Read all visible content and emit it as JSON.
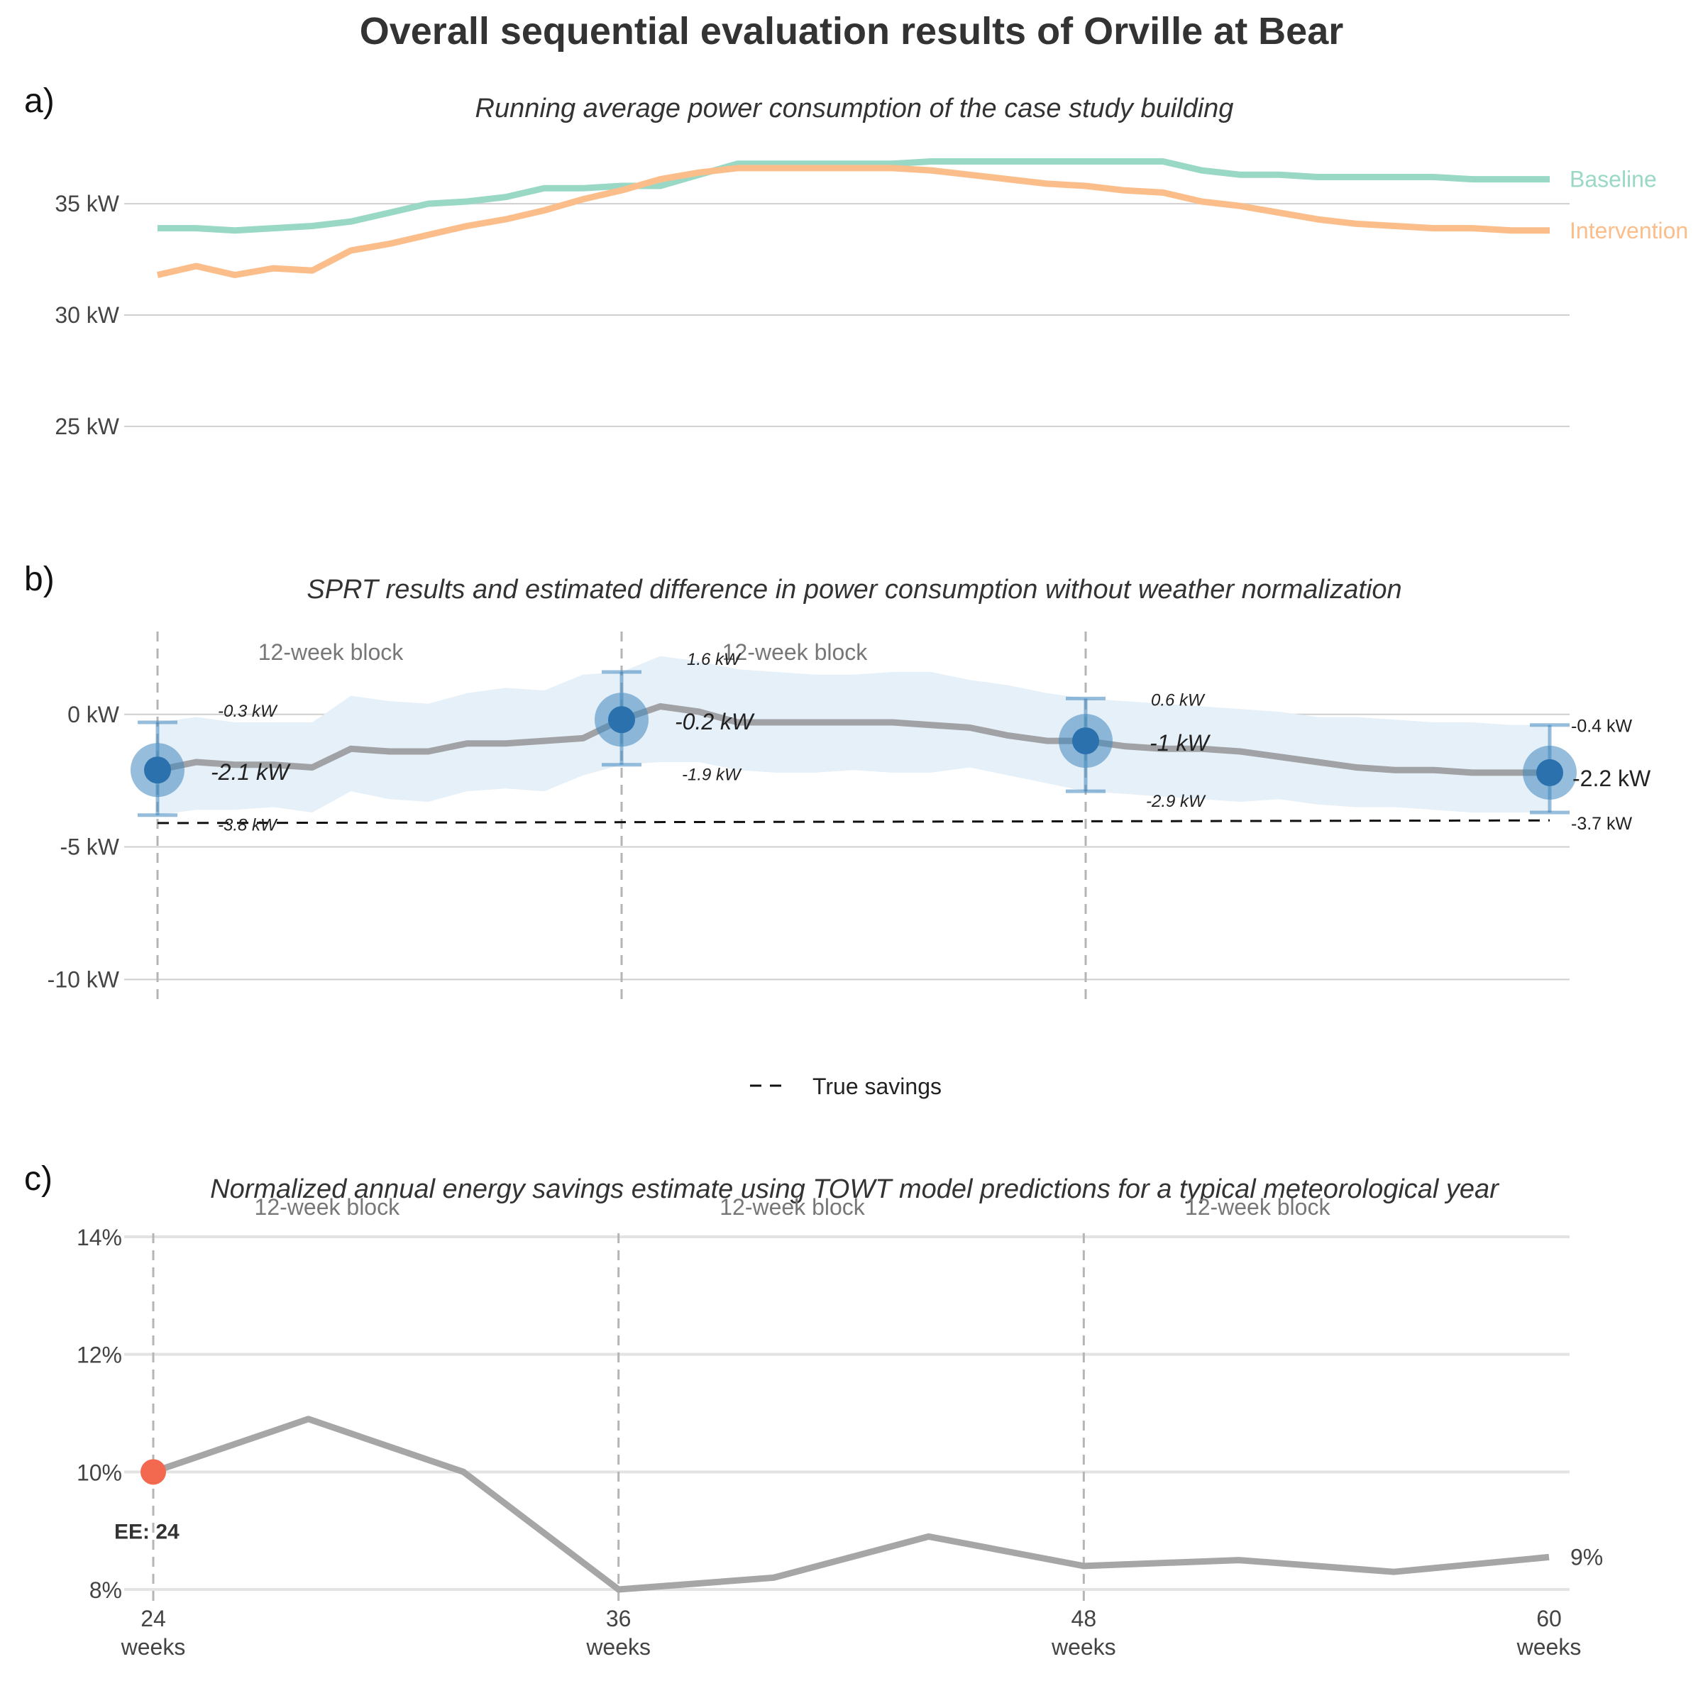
{
  "title": "Overall sequential evaluation results of Orville at Bear",
  "colors": {
    "baseline": "#9ad8c6",
    "intervention": "#fbbe8a",
    "diff": "#a0a2a5",
    "band": "#e6f0f8",
    "sprt": "#3f87bd",
    "savings": "#a6a6a6",
    "ee": "#f2694f"
  },
  "x_labels": [
    {
      "week": 24,
      "line1": "24",
      "line2": "weeks"
    },
    {
      "week": 36,
      "line1": "36",
      "line2": "weeks"
    },
    {
      "week": 48,
      "line1": "48",
      "line2": "weeks"
    },
    {
      "week": 60,
      "line1": "60",
      "line2": "weeks"
    }
  ],
  "panel_a": {
    "letter": "a)",
    "subtitle": "Running average power consumption of the case study building",
    "chart_data": {
      "type": "line",
      "x": [
        24,
        25,
        26,
        27,
        28,
        29,
        30,
        31,
        32,
        33,
        34,
        35,
        36,
        37,
        38,
        39,
        40,
        41,
        42,
        43,
        44,
        45,
        46,
        47,
        48,
        49,
        50,
        51,
        52,
        53,
        54,
        55,
        56,
        57,
        58,
        59,
        60
      ],
      "xlim": [
        24,
        60
      ],
      "ylim": [
        22,
        38
      ],
      "yticks": [
        25,
        30,
        35
      ],
      "ytick_labels": [
        "25 kW",
        "30 kW",
        "35 kW"
      ],
      "series": [
        {
          "name": "Baseline",
          "values": [
            33.9,
            33.9,
            33.8,
            33.9,
            34.0,
            34.2,
            34.6,
            35.0,
            35.1,
            35.3,
            35.7,
            35.7,
            35.8,
            35.8,
            36.3,
            36.8,
            36.8,
            36.8,
            36.8,
            36.8,
            36.9,
            36.9,
            36.9,
            36.9,
            36.9,
            36.9,
            36.9,
            36.5,
            36.3,
            36.3,
            36.2,
            36.2,
            36.2,
            36.2,
            36.1,
            36.1,
            36.1
          ]
        },
        {
          "name": "Intervention",
          "values": [
            31.8,
            32.2,
            31.8,
            32.1,
            32.0,
            32.9,
            33.2,
            33.6,
            34.0,
            34.3,
            34.7,
            35.2,
            35.6,
            36.1,
            36.4,
            36.6,
            36.6,
            36.6,
            36.6,
            36.6,
            36.5,
            36.3,
            36.1,
            35.9,
            35.8,
            35.6,
            35.5,
            35.1,
            34.9,
            34.6,
            34.3,
            34.1,
            34.0,
            33.9,
            33.9,
            33.8,
            33.8
          ]
        }
      ]
    }
  },
  "panel_b": {
    "letter": "b)",
    "subtitle": "SPRT results and estimated difference in power consumption without weather normalization",
    "block_label": "12-week block",
    "chart_data": {
      "type": "line",
      "x": [
        24,
        25,
        26,
        27,
        28,
        29,
        30,
        31,
        32,
        33,
        34,
        35,
        36,
        37,
        38,
        39,
        40,
        41,
        42,
        43,
        44,
        45,
        46,
        47,
        48,
        49,
        50,
        51,
        52,
        53,
        54,
        55,
        56,
        57,
        58,
        59,
        60
      ],
      "xlim": [
        24,
        60
      ],
      "ylim": [
        -10.5,
        3.5
      ],
      "yticks": [
        -10,
        -5,
        0
      ],
      "ytick_labels": [
        "-10 kW",
        "-5 kW",
        "0 kW"
      ],
      "estimate": [
        -2.1,
        -1.8,
        -1.9,
        -1.9,
        -2.0,
        -1.3,
        -1.4,
        -1.4,
        -1.1,
        -1.1,
        -1.0,
        -0.9,
        -0.2,
        0.3,
        0.1,
        -0.3,
        -0.3,
        -0.3,
        -0.3,
        -0.3,
        -0.4,
        -0.5,
        -0.8,
        -1.0,
        -1.0,
        -1.2,
        -1.3,
        -1.3,
        -1.4,
        -1.6,
        -1.8,
        -2.0,
        -2.1,
        -2.1,
        -2.2,
        -2.2,
        -2.2
      ],
      "upper": [
        -0.3,
        -0.1,
        -0.3,
        -0.3,
        -0.3,
        0.7,
        0.5,
        0.4,
        0.8,
        1.0,
        0.9,
        1.5,
        1.6,
        2.2,
        2.0,
        1.7,
        1.6,
        1.5,
        1.5,
        1.6,
        1.6,
        1.3,
        1.1,
        0.8,
        0.6,
        0.5,
        0.4,
        0.3,
        0.2,
        0.1,
        -0.1,
        -0.1,
        -0.2,
        -0.3,
        -0.3,
        -0.4,
        -0.4
      ],
      "lower": [
        -3.8,
        -3.6,
        -3.6,
        -3.5,
        -3.7,
        -2.9,
        -3.2,
        -3.3,
        -2.9,
        -2.8,
        -2.9,
        -2.3,
        -1.9,
        -1.8,
        -1.8,
        -2.1,
        -2.2,
        -2.2,
        -2.1,
        -2.2,
        -2.2,
        -2.0,
        -2.3,
        -2.6,
        -2.9,
        -3.0,
        -3.1,
        -3.2,
        -3.3,
        -3.2,
        -3.4,
        -3.5,
        -3.5,
        -3.6,
        -3.7,
        -3.7,
        -3.7
      ],
      "true_savings": {
        "name": "True savings",
        "from": [
          24,
          -4.1
        ],
        "to": [
          60,
          -4.0
        ]
      },
      "sprt_points": [
        {
          "week": 24,
          "estimate": -2.1,
          "upper": -0.3,
          "lower": -3.8,
          "estimate_label": "-2.1 kW",
          "upper_label": "-0.3 kW",
          "lower_label": "-3.8 kW"
        },
        {
          "week": 36,
          "estimate": -0.2,
          "upper": 1.6,
          "lower": -1.9,
          "estimate_label": "-0.2 kW",
          "upper_label": "1.6 kW",
          "lower_label": "-1.9 kW"
        },
        {
          "week": 48,
          "estimate": -1.0,
          "upper": 0.6,
          "lower": -2.9,
          "estimate_label": "-1 kW",
          "upper_label": "0.6 kW",
          "lower_label": "-2.9 kW"
        },
        {
          "week": 60,
          "estimate": -2.2,
          "upper": -0.4,
          "lower": -3.7,
          "estimate_label": "-2.2 kW",
          "upper_label": "-0.4 kW",
          "lower_label": "-3.7 kW"
        }
      ]
    }
  },
  "panel_c": {
    "letter": "c)",
    "subtitle": "Normalized annual energy savings estimate using TOWT model predictions for a typical meteorological year",
    "block_label": "12-week block",
    "chart_data": {
      "type": "line",
      "x": [
        24,
        28,
        32,
        36,
        40,
        44,
        48,
        52,
        56,
        60
      ],
      "values": [
        10.0,
        10.9,
        10.0,
        8.0,
        8.2,
        8.9,
        8.4,
        8.5,
        8.3,
        8.55
      ],
      "xlim": [
        24,
        60
      ],
      "ylim": [
        8,
        14
      ],
      "yticks": [
        8,
        10,
        12,
        14
      ],
      "ytick_labels": [
        "8%",
        "10%",
        "12%",
        "14%"
      ],
      "end_label": "9%",
      "ee_point": {
        "week": 24,
        "value": 10.0,
        "label": "EE: 24"
      }
    }
  }
}
